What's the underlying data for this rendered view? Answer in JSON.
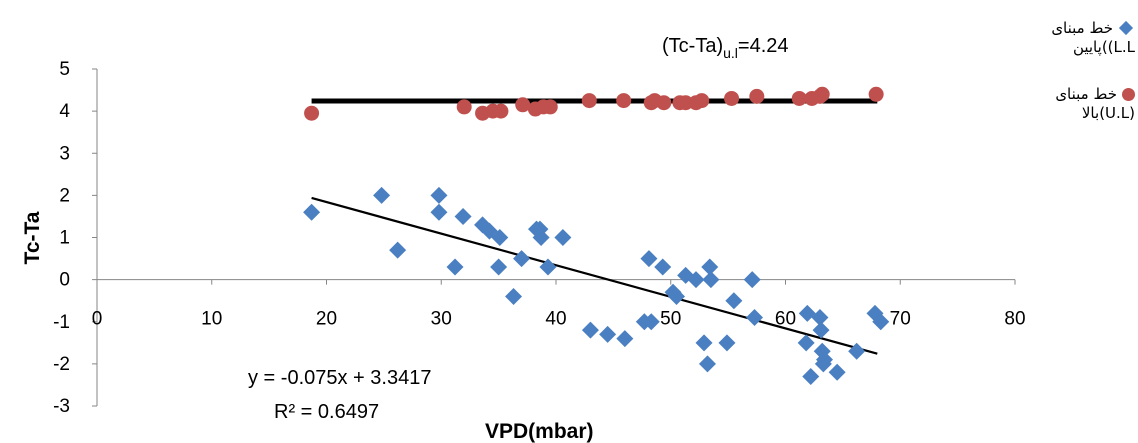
{
  "chart_data": {
    "type": "scatter",
    "xlabel": "VPD(mbar)",
    "ylabel": "Tc-Ta",
    "xlim": [
      0,
      80
    ],
    "ylim": [
      -3,
      5
    ],
    "x_ticks": [
      "0",
      "10",
      "20",
      "30",
      "40",
      "50",
      "60",
      "70",
      "80"
    ],
    "y_ticks": [
      "5",
      "4",
      "3",
      "2",
      "1",
      "0",
      "-1",
      "-2",
      "-3"
    ],
    "grid": false,
    "legend_position": "right",
    "annotation_upper_main": "(Tc-Ta)",
    "annotation_upper_sub": "u.l",
    "annotation_upper_value": "=4.24",
    "equation": "y = -0.075x + 3.3417",
    "r_squared": "R² = 0.6497",
    "colors": {
      "lower": "#4a7fc1",
      "upper": "#c0504d",
      "trend": "#000000"
    },
    "series": [
      {
        "name_line1": "خط مبنای",
        "name_line2": "پایین((L.L",
        "marker": "diamond",
        "points": [
          [
            18.7,
            1.6
          ],
          [
            24.8,
            2.0
          ],
          [
            26.2,
            0.7
          ],
          [
            29.8,
            2.0
          ],
          [
            29.8,
            1.6
          ],
          [
            31.2,
            0.3
          ],
          [
            31.9,
            1.5
          ],
          [
            33.6,
            1.3
          ],
          [
            34.2,
            1.15
          ],
          [
            35.1,
            1.0
          ],
          [
            35.0,
            0.3
          ],
          [
            36.3,
            -0.4
          ],
          [
            37.0,
            0.5
          ],
          [
            38.3,
            1.2
          ],
          [
            38.7,
            1.0
          ],
          [
            38.6,
            1.2
          ],
          [
            39.3,
            0.3
          ],
          [
            40.6,
            1.0
          ],
          [
            43.0,
            -1.2
          ],
          [
            44.5,
            -1.3
          ],
          [
            46.0,
            -1.4
          ],
          [
            47.7,
            -1.0
          ],
          [
            48.3,
            -1.0
          ],
          [
            48.1,
            0.5
          ],
          [
            49.3,
            0.3
          ],
          [
            50.2,
            -0.3
          ],
          [
            50.5,
            -0.4
          ],
          [
            51.3,
            0.1
          ],
          [
            52.2,
            0.0
          ],
          [
            52.9,
            -1.5
          ],
          [
            53.2,
            -2.0
          ],
          [
            53.4,
            0.3
          ],
          [
            53.5,
            0.0
          ],
          [
            54.9,
            -1.5
          ],
          [
            55.5,
            -0.5
          ],
          [
            57.1,
            0.0
          ],
          [
            57.3,
            -0.9
          ],
          [
            61.8,
            -1.5
          ],
          [
            61.9,
            -0.8
          ],
          [
            62.2,
            -2.3
          ],
          [
            63.0,
            -0.9
          ],
          [
            63.1,
            -1.2
          ],
          [
            63.2,
            -1.7
          ],
          [
            63.3,
            -2.0
          ],
          [
            63.4,
            -1.9
          ],
          [
            64.5,
            -2.2
          ],
          [
            66.2,
            -1.7
          ],
          [
            67.8,
            -0.8
          ],
          [
            68.3,
            -1.0
          ]
        ],
        "trendline": {
          "slope": -0.075,
          "intercept": 3.3417,
          "x_from": 18.7,
          "x_to": 68.0
        }
      },
      {
        "name_line1": "خط مبنای",
        "name_line2": "بالا(U.L)",
        "marker": "circle",
        "points": [
          [
            18.7,
            3.95
          ],
          [
            32.0,
            4.1
          ],
          [
            33.6,
            3.95
          ],
          [
            34.5,
            4.0
          ],
          [
            35.2,
            4.0
          ],
          [
            37.1,
            4.15
          ],
          [
            38.2,
            4.05
          ],
          [
            38.9,
            4.1
          ],
          [
            39.5,
            4.1
          ],
          [
            42.9,
            4.25
          ],
          [
            45.9,
            4.25
          ],
          [
            48.3,
            4.2
          ],
          [
            48.6,
            4.25
          ],
          [
            49.4,
            4.2
          ],
          [
            50.8,
            4.2
          ],
          [
            51.3,
            4.2
          ],
          [
            52.2,
            4.2
          ],
          [
            52.7,
            4.25
          ],
          [
            55.3,
            4.3
          ],
          [
            57.5,
            4.35
          ],
          [
            61.2,
            4.3
          ],
          [
            62.3,
            4.3
          ],
          [
            63.0,
            4.35
          ],
          [
            63.2,
            4.4
          ],
          [
            67.9,
            4.4
          ]
        ],
        "trendline": {
          "slope": 0,
          "intercept": 4.24,
          "x_from": 18.7,
          "x_to": 68.0
        }
      }
    ]
  }
}
